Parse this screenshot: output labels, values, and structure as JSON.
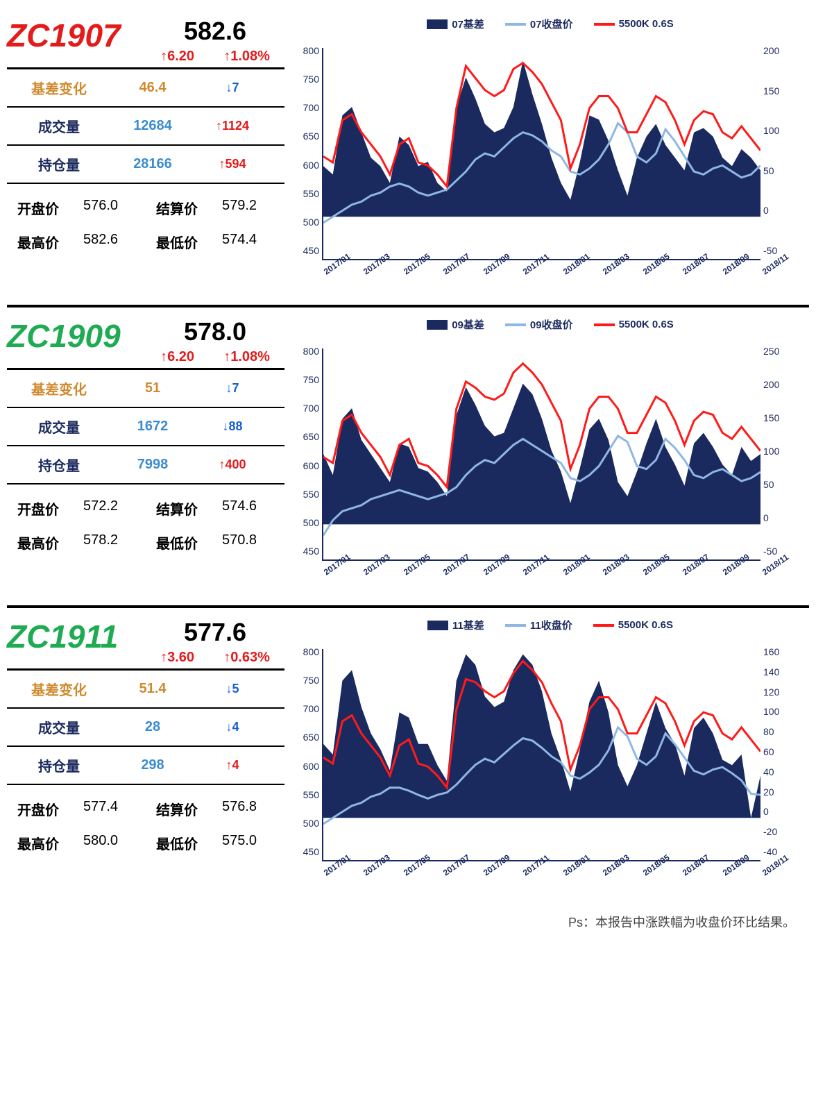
{
  "colors": {
    "navy": "#1b2a5e",
    "red": "#e31b1b",
    "blue_label": "#165fd4",
    "blue_txt": "#3b8ccf",
    "orange": "#cf8a2e",
    "green": "#1eab52",
    "light_blue": "#8fb7e3",
    "bright_red": "#ff1a1a"
  },
  "x_months": [
    "2017/01",
    "2017/03",
    "2017/05",
    "2017/07",
    "2017/09",
    "2017/11",
    "2018/01",
    "2018/03",
    "2018/05",
    "2018/07",
    "2018/09",
    "2018/11"
  ],
  "panels": [
    {
      "ticker": "ZC1907",
      "ticker_color": "#e31b1b",
      "price": "582.6",
      "chg_abs": "↑6.20",
      "chg_pct": "↑1.08%",
      "chg_color": "#e31b1b",
      "rows": [
        {
          "label": "基差变化",
          "label_color": "#cf8a2e",
          "val": "46.4",
          "val_color": "#cf8a2e",
          "delta": "↓7",
          "delta_color": "#165fd4"
        },
        {
          "label": "成交量",
          "label_color": "#1b2a5e",
          "val": "12684",
          "val_color": "#3b8ccf",
          "delta": "↑1124",
          "delta_color": "#e31b1b"
        },
        {
          "label": "持仓量",
          "label_color": "#1b2a5e",
          "val": "28166",
          "val_color": "#3b8ccf",
          "delta": "↑594",
          "delta_color": "#e31b1b"
        }
      ],
      "ohlc": [
        [
          "开盘价",
          "576.0"
        ],
        [
          "结算价",
          "579.2"
        ],
        [
          "最高价",
          "582.6"
        ],
        [
          "最低价",
          "574.4"
        ]
      ],
      "legend": [
        "07基差",
        "07收盘价",
        "5500K 0.6S"
      ],
      "chart": {
        "y_left": {
          "min": 450,
          "max": 800,
          "step": 50
        },
        "y_right": {
          "min": -50,
          "max": 200,
          "step": 50
        },
        "area": [
          60,
          50,
          120,
          130,
          100,
          70,
          60,
          40,
          95,
          85,
          60,
          65,
          40,
          30,
          130,
          165,
          140,
          110,
          100,
          105,
          130,
          185,
          145,
          110,
          70,
          40,
          20,
          65,
          120,
          115,
          90,
          55,
          25,
          70,
          95,
          110,
          85,
          70,
          55,
          100,
          105,
          95,
          70,
          60,
          80,
          70,
          55
        ],
        "close": [
          510,
          520,
          530,
          540,
          545,
          555,
          560,
          570,
          575,
          570,
          560,
          555,
          560,
          565,
          580,
          595,
          615,
          625,
          620,
          635,
          650,
          660,
          655,
          645,
          630,
          620,
          595,
          590,
          600,
          615,
          640,
          675,
          660,
          620,
          610,
          625,
          665,
          645,
          620,
          595,
          590,
          600,
          605,
          595,
          585,
          590,
          605
        ],
        "idx": [
          620,
          610,
          680,
          690,
          660,
          640,
          620,
          590,
          640,
          650,
          610,
          605,
          590,
          570,
          700,
          770,
          750,
          730,
          720,
          730,
          765,
          775,
          760,
          740,
          710,
          680,
          600,
          640,
          700,
          720,
          720,
          700,
          660,
          660,
          690,
          720,
          710,
          680,
          640,
          680,
          695,
          690,
          660,
          650,
          670,
          650,
          630
        ]
      }
    },
    {
      "ticker": "ZC1909",
      "ticker_color": "#1eab52",
      "price": "578.0",
      "chg_abs": "↑6.20",
      "chg_pct": "↑1.08%",
      "chg_color": "#e31b1b",
      "rows": [
        {
          "label": "基差变化",
          "label_color": "#cf8a2e",
          "val": "51",
          "val_color": "#cf8a2e",
          "delta": "↓7",
          "delta_color": "#165fd4"
        },
        {
          "label": "成交量",
          "label_color": "#1b2a5e",
          "val": "1672",
          "val_color": "#3b8ccf",
          "delta": "↓88",
          "delta_color": "#165fd4"
        },
        {
          "label": "持仓量",
          "label_color": "#1b2a5e",
          "val": "7998",
          "val_color": "#3b8ccf",
          "delta": "↑400",
          "delta_color": "#e31b1b"
        }
      ],
      "ohlc": [
        [
          "开盘价",
          "572.2"
        ],
        [
          "结算价",
          "574.6"
        ],
        [
          "最高价",
          "578.2"
        ],
        [
          "最低价",
          "570.8"
        ]
      ],
      "legend": [
        "09基差",
        "09收盘价",
        "5500K 0.6S"
      ],
      "chart": {
        "y_left": {
          "min": 450,
          "max": 800,
          "step": 50
        },
        "y_right": {
          "min": -50,
          "max": 250,
          "step": 50
        },
        "area": [
          100,
          70,
          150,
          165,
          120,
          100,
          80,
          60,
          115,
          110,
          80,
          75,
          60,
          40,
          155,
          195,
          170,
          140,
          125,
          130,
          165,
          200,
          185,
          150,
          105,
          75,
          30,
          80,
          135,
          150,
          120,
          60,
          40,
          75,
          115,
          150,
          110,
          85,
          55,
          115,
          130,
          110,
          85,
          70,
          110,
          90,
          100
        ],
        "close": [
          490,
          515,
          530,
          535,
          540,
          550,
          555,
          560,
          565,
          560,
          555,
          550,
          555,
          560,
          570,
          590,
          605,
          615,
          610,
          625,
          640,
          650,
          640,
          630,
          620,
          610,
          585,
          580,
          590,
          605,
          630,
          655,
          645,
          605,
          600,
          615,
          650,
          635,
          615,
          590,
          585,
          595,
          600,
          590,
          580,
          585,
          595
        ],
        "idx": [
          620,
          610,
          680,
          690,
          660,
          640,
          620,
          590,
          640,
          650,
          610,
          605,
          590,
          570,
          700,
          745,
          735,
          720,
          715,
          725,
          760,
          775,
          760,
          740,
          710,
          680,
          600,
          640,
          700,
          720,
          720,
          700,
          660,
          660,
          690,
          720,
          710,
          680,
          640,
          680,
          695,
          690,
          660,
          650,
          670,
          650,
          630
        ]
      }
    },
    {
      "ticker": "ZC1911",
      "ticker_color": "#1eab52",
      "price": "577.6",
      "chg_abs": "↑3.60",
      "chg_pct": "↑0.63%",
      "chg_color": "#e31b1b",
      "rows": [
        {
          "label": "基差变化",
          "label_color": "#cf8a2e",
          "val": "51.4",
          "val_color": "#cf8a2e",
          "delta": "↓5",
          "delta_color": "#165fd4"
        },
        {
          "label": "成交量",
          "label_color": "#1b2a5e",
          "val": "28",
          "val_color": "#3b8ccf",
          "delta": "↓4",
          "delta_color": "#165fd4"
        },
        {
          "label": "持仓量",
          "label_color": "#1b2a5e",
          "val": "298",
          "val_color": "#3b8ccf",
          "delta": "↑4",
          "delta_color": "#e31b1b"
        }
      ],
      "ohlc": [
        [
          "开盘价",
          "577.4"
        ],
        [
          "结算价",
          "576.8"
        ],
        [
          "最高价",
          "580.0"
        ],
        [
          "最低价",
          "575.0"
        ]
      ],
      "legend": [
        "11基差",
        "11收盘价",
        "5500K 0.6S"
      ],
      "chart": {
        "y_left": {
          "min": 450,
          "max": 800,
          "step": 50
        },
        "y_right": {
          "min": -40,
          "max": 160,
          "step": 20
        },
        "area": [
          70,
          60,
          130,
          140,
          105,
          80,
          65,
          45,
          100,
          95,
          70,
          70,
          50,
          35,
          130,
          155,
          145,
          115,
          105,
          110,
          140,
          155,
          145,
          120,
          80,
          55,
          25,
          65,
          110,
          130,
          100,
          50,
          30,
          50,
          80,
          110,
          85,
          70,
          40,
          85,
          95,
          80,
          55,
          50,
          60,
          0,
          40
        ],
        "close": [
          510,
          520,
          530,
          540,
          545,
          555,
          560,
          570,
          570,
          565,
          558,
          552,
          558,
          562,
          575,
          592,
          608,
          618,
          612,
          626,
          640,
          652,
          648,
          636,
          622,
          612,
          590,
          585,
          595,
          608,
          632,
          670,
          655,
          618,
          608,
          622,
          660,
          642,
          620,
          598,
          592,
          600,
          604,
          594,
          582,
          560,
          558
        ],
        "idx": [
          620,
          610,
          680,
          690,
          660,
          640,
          620,
          590,
          640,
          650,
          610,
          605,
          590,
          570,
          700,
          750,
          745,
          730,
          720,
          730,
          760,
          780,
          765,
          745,
          710,
          680,
          600,
          640,
          700,
          720,
          720,
          700,
          660,
          660,
          690,
          720,
          710,
          680,
          640,
          680,
          695,
          690,
          660,
          650,
          670,
          650,
          630
        ]
      }
    }
  ],
  "footnote": "Ps：本报告中涨跌幅为收盘价环比结果。"
}
